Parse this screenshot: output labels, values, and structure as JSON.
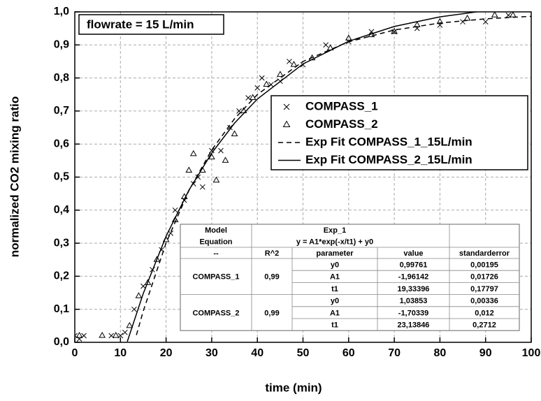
{
  "chart_data": {
    "type": "scatter",
    "x_label": "time (min)",
    "y_label": "normalized CO2 mixing ratio",
    "annotation": "flowrate = 15 L/min",
    "xlim": [
      0,
      100
    ],
    "ylim": [
      0,
      1
    ],
    "xticks": [
      0,
      10,
      20,
      30,
      40,
      50,
      60,
      70,
      80,
      90,
      100
    ],
    "yticks": [
      {
        "value": 0,
        "label": "0,0"
      },
      {
        "value": 0.1,
        "label": "0,1"
      },
      {
        "value": 0.2,
        "label": "0,2"
      },
      {
        "value": 0.3,
        "label": "0,3"
      },
      {
        "value": 0.4,
        "label": "0,4"
      },
      {
        "value": 0.5,
        "label": "0,5"
      },
      {
        "value": 0.6,
        "label": "0,6"
      },
      {
        "value": 0.7,
        "label": "0,7"
      },
      {
        "value": 0.8,
        "label": "0,8"
      },
      {
        "value": 0.9,
        "label": "0,9"
      },
      {
        "value": 1,
        "label": "1,0"
      }
    ],
    "grid": true,
    "legend": "upper right",
    "series": [
      {
        "name": "COMPASS_1",
        "color": "#000000",
        "marker": "x",
        "x": [
          0,
          1,
          2,
          8,
          10,
          11,
          13,
          15,
          17,
          19,
          21,
          22,
          24,
          26,
          27,
          28,
          30,
          32,
          34,
          36,
          38,
          40,
          41,
          43,
          45,
          47,
          50,
          55,
          60,
          65,
          70,
          75,
          80,
          85,
          90,
          95
        ],
        "values": [
          0.02,
          0.01,
          0.02,
          0.02,
          0.02,
          0.03,
          0.1,
          0.17,
          0.22,
          0.28,
          0.33,
          0.4,
          0.43,
          0.48,
          0.5,
          0.47,
          0.58,
          0.58,
          0.65,
          0.7,
          0.74,
          0.77,
          0.8,
          0.78,
          0.79,
          0.85,
          0.84,
          0.9,
          0.91,
          0.94,
          0.94,
          0.95,
          0.96,
          0.97,
          0.97,
          0.99
        ]
      },
      {
        "name": "COMPASS_2",
        "color": "#000000",
        "marker": "triangle",
        "x": [
          1,
          6,
          9,
          12,
          14,
          16,
          18,
          20,
          22,
          24,
          25,
          26,
          28,
          30,
          31,
          33,
          35,
          37,
          39,
          42,
          45,
          48,
          52,
          56,
          60,
          65,
          70,
          75,
          80,
          86,
          92,
          96
        ],
        "values": [
          0.02,
          0.02,
          0.02,
          0.05,
          0.14,
          0.18,
          0.25,
          0.31,
          0.37,
          0.44,
          0.52,
          0.57,
          0.52,
          0.56,
          0.49,
          0.55,
          0.63,
          0.7,
          0.74,
          0.78,
          0.81,
          0.84,
          0.86,
          0.89,
          0.92,
          0.93,
          0.94,
          0.96,
          0.97,
          0.98,
          0.99,
          0.99
        ]
      },
      {
        "name": "Exp Fit COMPASS_1_15L/min",
        "color": "#000000",
        "line": "dashed",
        "x": [
          13.5,
          15,
          20,
          25,
          30,
          35,
          40,
          50,
          60,
          70,
          80,
          90,
          100
        ],
        "values": [
          0.022,
          0.0947,
          0.3005,
          0.4594,
          0.582,
          0.6767,
          0.7499,
          0.8499,
          0.9095,
          0.9451,
          0.9663,
          0.979,
          0.9865
        ]
      },
      {
        "name": "Exp Fit COMPASS_2_15L/min",
        "color": "#000000",
        "line": "solid",
        "x": [
          11.5,
          15,
          20,
          25,
          30,
          35,
          40,
          50,
          60,
          70,
          80,
          90
        ],
        "values": [
          0.0022,
          0.1477,
          0.3209,
          0.4604,
          0.5727,
          0.6633,
          0.7362,
          0.8423,
          0.9111,
          0.9559,
          0.9849,
          1.0037
        ]
      }
    ],
    "table": {
      "model_label": "Model",
      "model": "Exp_1",
      "equation_label": "Equation",
      "equation": "y = A1*exp(-x/t1) + y0",
      "columns": [
        "--",
        "R^2",
        "parameter",
        "value",
        "standarderror"
      ],
      "groups": [
        {
          "name": "COMPASS_1",
          "r2": "0,99",
          "rows": [
            [
              "y0",
              "0,99761",
              "0,00195"
            ],
            [
              "A1",
              "-1,96142",
              "0,01726"
            ],
            [
              "t1",
              "19,33396",
              "0,17797"
            ]
          ]
        },
        {
          "name": "COMPASS_2",
          "r2": "0,99",
          "rows": [
            [
              "y0",
              "1,03853",
              "0,00336"
            ],
            [
              "A1",
              "-1,70339",
              "0,012"
            ],
            [
              "t1",
              "23,13846",
              "0,2712"
            ]
          ]
        }
      ]
    }
  }
}
